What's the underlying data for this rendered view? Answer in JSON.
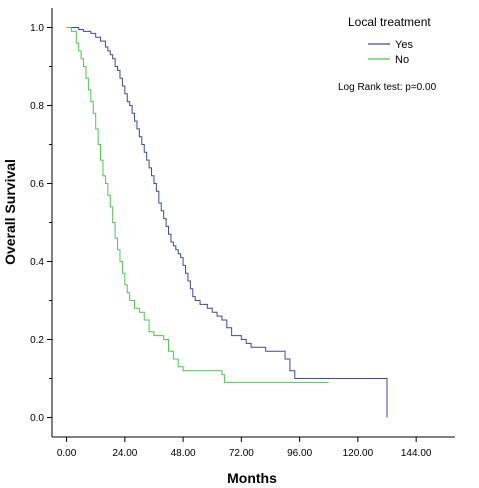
{
  "chart_data": {
    "type": "line",
    "title": "",
    "xlabel": "Months",
    "ylabel": "Overall Survival",
    "xlim": [
      -6,
      160
    ],
    "ylim": [
      -0.05,
      1.05
    ],
    "x_ticks": [
      0,
      24,
      48,
      72,
      96,
      120,
      144
    ],
    "x_tick_labels": [
      "0.00",
      "24.00",
      "48.00",
      "72.00",
      "96.00",
      "120.00",
      "144.00"
    ],
    "y_ticks": [
      0.0,
      0.2,
      0.4,
      0.6,
      0.8,
      1.0
    ],
    "y_tick_labels": [
      "0.0",
      "0.2",
      "0.4",
      "0.6",
      "0.8",
      "1.0"
    ],
    "grid": false,
    "legend": {
      "title": "Local treatment",
      "placement": "top-right",
      "entries": [
        "Yes",
        "No"
      ]
    },
    "annotation": "Log Rank test: p=0.00",
    "series": [
      {
        "name": "Yes",
        "color": "#3a4a9e",
        "points": [
          [
            0,
            1.0
          ],
          [
            5,
            0.995
          ],
          [
            7,
            0.99
          ],
          [
            10,
            0.985
          ],
          [
            12,
            0.975
          ],
          [
            14,
            0.965
          ],
          [
            16,
            0.95
          ],
          [
            17,
            0.94
          ],
          [
            18,
            0.93
          ],
          [
            19,
            0.92
          ],
          [
            20,
            0.9
          ],
          [
            21,
            0.89
          ],
          [
            22,
            0.87
          ],
          [
            23,
            0.85
          ],
          [
            24,
            0.83
          ],
          [
            25,
            0.81
          ],
          [
            26,
            0.8
          ],
          [
            27,
            0.78
          ],
          [
            28,
            0.76
          ],
          [
            29,
            0.74
          ],
          [
            30,
            0.72
          ],
          [
            31,
            0.7
          ],
          [
            32,
            0.68
          ],
          [
            33,
            0.66
          ],
          [
            34,
            0.64
          ],
          [
            35,
            0.62
          ],
          [
            36,
            0.6
          ],
          [
            37,
            0.58
          ],
          [
            38,
            0.55
          ],
          [
            39,
            0.53
          ],
          [
            40,
            0.51
          ],
          [
            41,
            0.49
          ],
          [
            42,
            0.47
          ],
          [
            43,
            0.45
          ],
          [
            44,
            0.44
          ],
          [
            45,
            0.43
          ],
          [
            46,
            0.42
          ],
          [
            47,
            0.41
          ],
          [
            48,
            0.39
          ],
          [
            49,
            0.37
          ],
          [
            50,
            0.35
          ],
          [
            51,
            0.33
          ],
          [
            52,
            0.31
          ],
          [
            53,
            0.3
          ],
          [
            55,
            0.29
          ],
          [
            58,
            0.28
          ],
          [
            60,
            0.27
          ],
          [
            62,
            0.26
          ],
          [
            64,
            0.25
          ],
          [
            66,
            0.23
          ],
          [
            68,
            0.21
          ],
          [
            72,
            0.2
          ],
          [
            74,
            0.19
          ],
          [
            76,
            0.18
          ],
          [
            82,
            0.17
          ],
          [
            90,
            0.15
          ],
          [
            92,
            0.12
          ],
          [
            94,
            0.1
          ],
          [
            132,
            0.1
          ],
          [
            132,
            0.0
          ]
        ]
      },
      {
        "name": "No",
        "color": "#4cc94c",
        "points": [
          [
            0,
            1.0
          ],
          [
            2,
            0.99
          ],
          [
            4,
            0.96
          ],
          [
            5,
            0.94
          ],
          [
            6,
            0.92
          ],
          [
            7,
            0.9
          ],
          [
            8,
            0.87
          ],
          [
            9,
            0.84
          ],
          [
            10,
            0.81
          ],
          [
            11,
            0.78
          ],
          [
            12,
            0.74
          ],
          [
            13,
            0.7
          ],
          [
            14,
            0.66
          ],
          [
            15,
            0.62
          ],
          [
            16,
            0.6
          ],
          [
            17,
            0.57
          ],
          [
            18,
            0.54
          ],
          [
            19,
            0.5
          ],
          [
            20,
            0.46
          ],
          [
            21,
            0.43
          ],
          [
            22,
            0.4
          ],
          [
            23,
            0.37
          ],
          [
            24,
            0.34
          ],
          [
            25,
            0.32
          ],
          [
            26,
            0.3
          ],
          [
            28,
            0.28
          ],
          [
            30,
            0.27
          ],
          [
            32,
            0.25
          ],
          [
            34,
            0.22
          ],
          [
            36,
            0.21
          ],
          [
            40,
            0.2
          ],
          [
            42,
            0.17
          ],
          [
            44,
            0.15
          ],
          [
            46,
            0.13
          ],
          [
            48,
            0.12
          ],
          [
            64,
            0.11
          ],
          [
            65,
            0.09
          ],
          [
            108,
            0.09
          ]
        ]
      }
    ]
  }
}
